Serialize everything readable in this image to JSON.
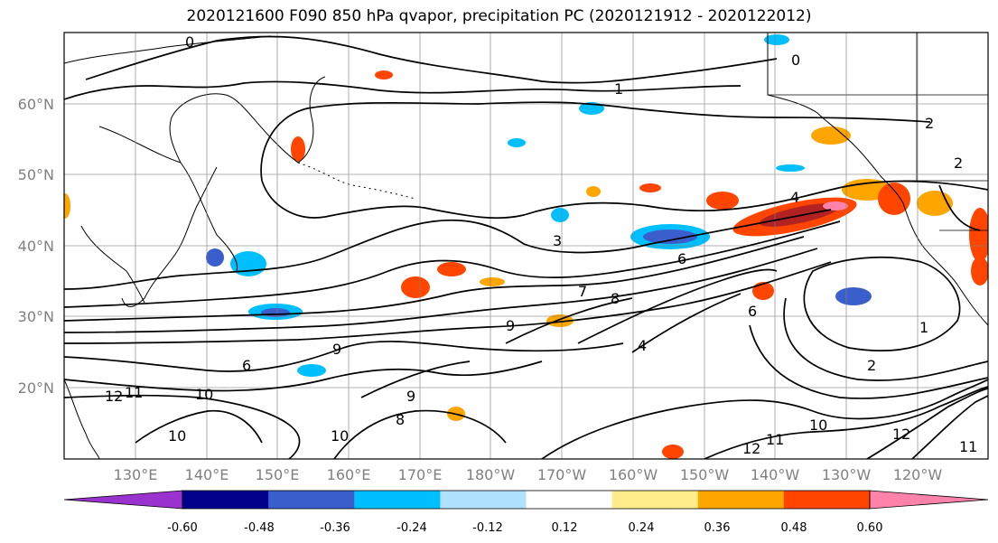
{
  "title": "2020121600 F090 850 hPa qvapor, precipitation PC (2020121912 - 2020122012)",
  "map": {
    "lat_labels": [
      "60°N",
      "50°N",
      "40°N",
      "30°N",
      "20°N"
    ],
    "lon_labels": [
      "130°E",
      "140°E",
      "150°E",
      "160°E",
      "170°E",
      "180°W",
      "170°W",
      "160°W",
      "150°W",
      "140°W",
      "130°W",
      "120°W"
    ],
    "contour_labels": [
      "0",
      "0",
      "1",
      "2",
      "2",
      "3",
      "4",
      "6",
      "6",
      "6",
      "7",
      "8",
      "9",
      "9",
      "9",
      "10",
      "10",
      "10",
      "10",
      "11",
      "11",
      "11",
      "12",
      "12",
      "12",
      "1",
      "2",
      "4",
      "8"
    ]
  },
  "colorbar": {
    "tick_labels": [
      "-0.60",
      "-0.48",
      "-0.36",
      "-0.24",
      "-0.12",
      "0.12",
      "0.24",
      "0.36",
      "0.48",
      "0.60"
    ],
    "colors": [
      "#9a32cd",
      "#00008b",
      "#3a5fcd",
      "#00bfff",
      "#b0e2ff",
      "#ffffff",
      "#ffec8b",
      "#ffa500",
      "#ff4500",
      "#b22222",
      "#ff82ab"
    ]
  }
}
